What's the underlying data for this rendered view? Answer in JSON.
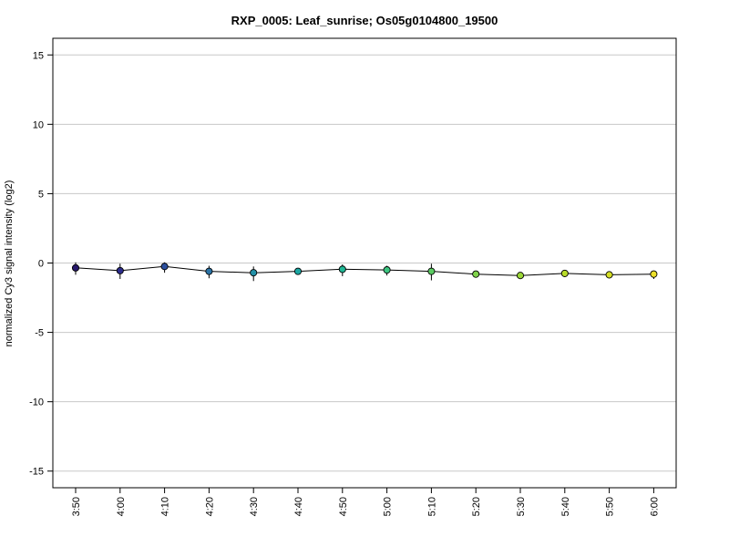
{
  "chart_data": {
    "type": "line",
    "title": "RXP_0005: Leaf_sunrise; Os05g0104800_19500",
    "xlabel": "",
    "ylabel": "normalized Cy3 signal intensity (log2)",
    "ylim": [
      -16.2,
      16.2
    ],
    "yticks": [
      -15,
      -10,
      -5,
      0,
      5,
      10,
      15
    ],
    "ytick_labels": [
      "-15",
      "-10",
      "-5",
      "0",
      "5",
      "10",
      "15"
    ],
    "grid": "horizontal",
    "categories": [
      "3:50",
      "4:00",
      "4:10",
      "4:20",
      "4:30",
      "4:40",
      "4:50",
      "5:00",
      "5:10",
      "5:20",
      "5:30",
      "5:40",
      "5:50",
      "6:00"
    ],
    "series": [
      {
        "values": [
          -0.35,
          -0.55,
          -0.25,
          -0.6,
          -0.7,
          -0.6,
          -0.45,
          -0.5,
          -0.6,
          -0.8,
          -0.9,
          -0.75,
          -0.85,
          -0.8
        ],
        "err_low": [
          -0.85,
          -1.15,
          -0.7,
          -1.1,
          -1.3,
          -0.8,
          -0.95,
          -0.9,
          -1.25,
          -0.95,
          -1.0,
          -0.85,
          -1.0,
          -1.15
        ],
        "err_high": [
          0.05,
          -0.05,
          0.05,
          -0.2,
          -0.25,
          -0.45,
          -0.1,
          -0.2,
          -0.05,
          -0.7,
          -0.8,
          -0.65,
          -0.7,
          -0.55
        ]
      }
    ],
    "point_colors": [
      "#26186b",
      "#2c2c8c",
      "#2c4f9e",
      "#2a72a5",
      "#2391a8",
      "#1ba6a2",
      "#20b896",
      "#3cc580",
      "#5ccc63",
      "#7fd34a",
      "#9bd736",
      "#b9dc2a",
      "#d5df25",
      "#ece02a"
    ]
  }
}
